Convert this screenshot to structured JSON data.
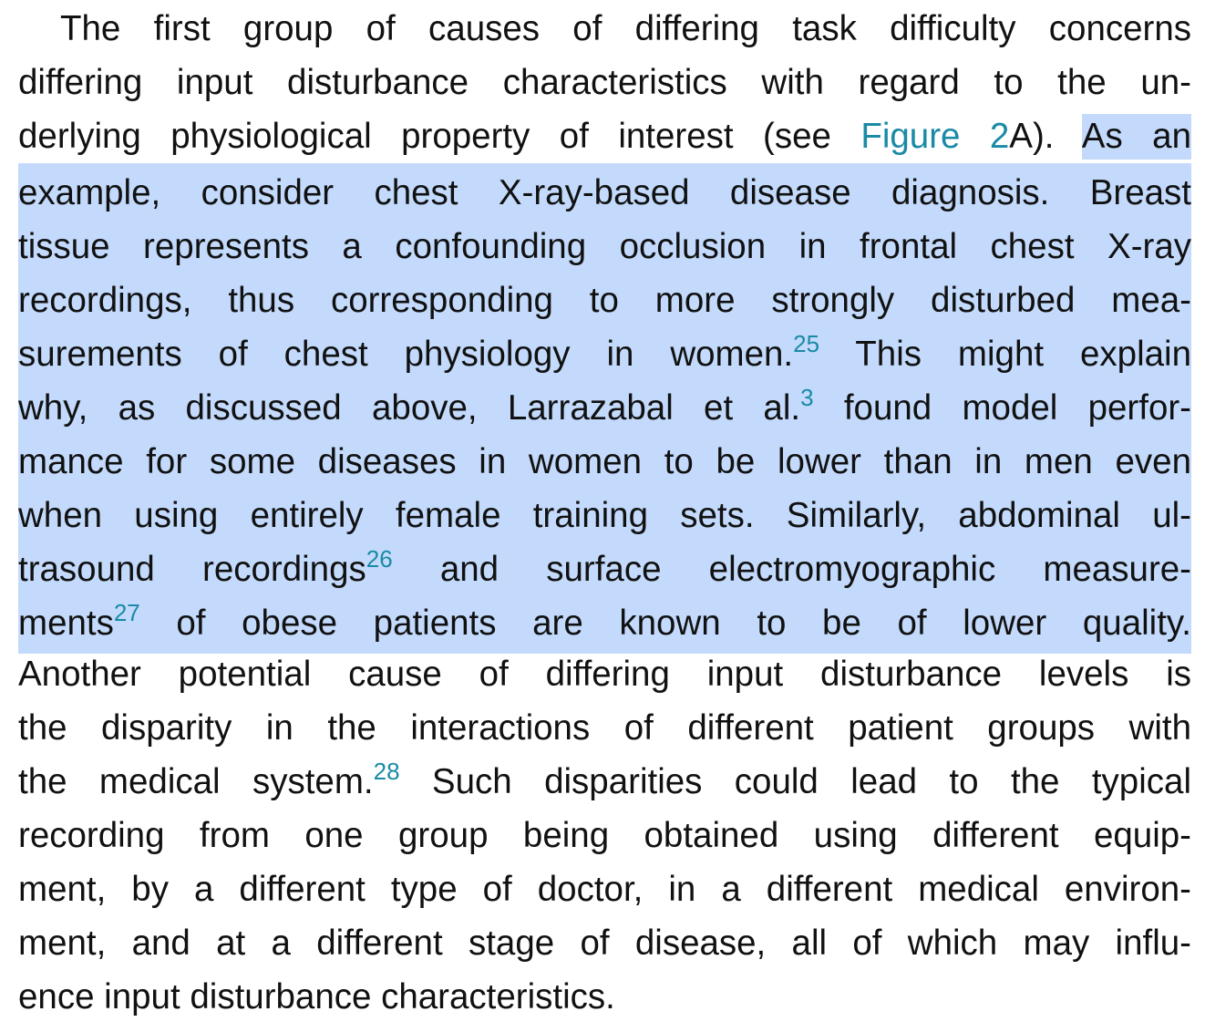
{
  "paragraph": {
    "l1": "The first group of causes of differing task difficulty concerns",
    "l2": "differing input disturbance characteristics with regard to the un-",
    "l3_a": "derlying physiological property of interest (see ",
    "figure_ref": "Figure 2",
    "l3_b": "A). ",
    "l3_hl": "As an",
    "l4": "example, consider chest X-ray-based disease diagnosis. Breast",
    "l5": "tissue represents a confounding occlusion in frontal chest X-ray",
    "l6": "recordings, thus corresponding to more strongly disturbed mea-",
    "l7_a": "surements of chest physiology in women.",
    "ref_25": "25",
    "l7_b": " This might explain",
    "l8_a": "why, as discussed above, Larrazabal et al.",
    "ref_3": "3",
    "l8_b": " found model perfor-",
    "l9": "mance for some diseases in women to be lower than in men even",
    "l10": "when using entirely female training sets. Similarly, abdominal ul-",
    "l11_a": "trasound recordings",
    "ref_26": "26",
    "l11_b": " and surface electromyographic measure-",
    "l12_a": "ments",
    "ref_27": "27",
    "l12_b": " of obese patients are known to be of lower quality.",
    "l13": "Another potential cause of differing input disturbance levels is",
    "l14": "the disparity in the interactions of different patient groups with",
    "l15_a": "the medical system.",
    "ref_28": "28",
    "l15_b": " Such disparities could lead to the typical",
    "l16": "recording from one group being obtained using different equip-",
    "l17": "ment, by a different type of doctor, in a different medical environ-",
    "l18": "ment, and at a different stage of disease, all of which may influ-",
    "l19": "ence input disturbance characteristics."
  }
}
